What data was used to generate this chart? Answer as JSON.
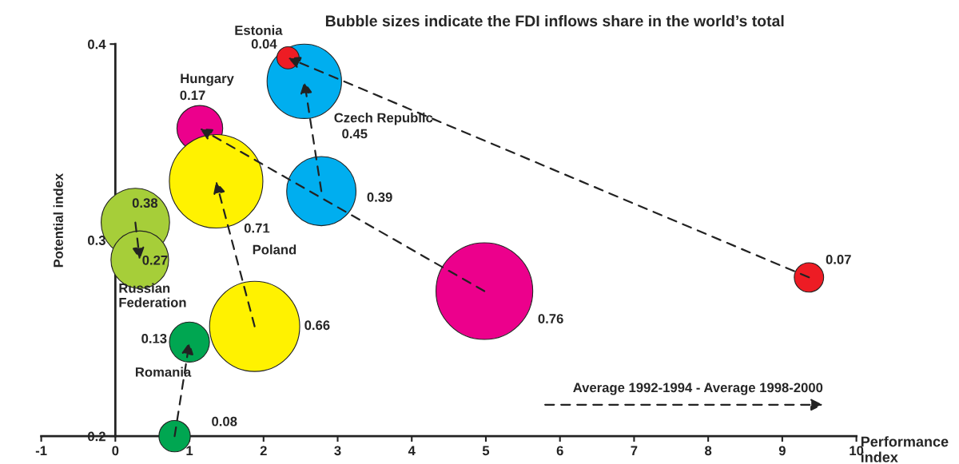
{
  "chart_data": {
    "type": "bubble",
    "title": "Bubble sizes indicate the FDI inflows share in the world’s total",
    "xlabel": "Performance\nindex",
    "ylabel": "Potential index",
    "xlim": [
      -1,
      10
    ],
    "xticks": [
      -1,
      0,
      1,
      2,
      3,
      4,
      5,
      6,
      7,
      8,
      9,
      10
    ],
    "ylim": [
      0.2,
      0.4
    ],
    "yticks": [
      0.2,
      0.3,
      0.4
    ],
    "grid": false,
    "legend": false,
    "annotations": [
      "Average 1992-1994 - Average 1998-2000"
    ],
    "series": [
      {
        "name": "Romania",
        "color": "#00a651",
        "x": [
          0.8,
          1.0
        ],
        "values": [
          0.2,
          0.248
        ],
        "sizes": [
          0.08,
          0.13
        ],
        "value_labels": [
          "0.08",
          "0.13"
        ]
      },
      {
        "name": "Russian\nFederation",
        "color": "#a6ce39",
        "x": [
          0.27,
          0.33
        ],
        "values": [
          0.309,
          0.29
        ],
        "sizes": [
          0.38,
          0.27
        ],
        "value_labels": [
          "0.38",
          "0.27"
        ]
      },
      {
        "name": "Hungary",
        "color": "#ec008c",
        "x": [
          4.98,
          1.14
        ],
        "values": [
          0.274,
          0.357
        ],
        "sizes": [
          0.76,
          0.17
        ],
        "value_labels": [
          "0.76",
          "0.17"
        ]
      },
      {
        "name": "Poland",
        "color": "#fff200",
        "x": [
          1.88,
          1.36
        ],
        "values": [
          0.256,
          0.33
        ],
        "sizes": [
          0.66,
          0.71
        ],
        "value_labels": [
          "0.66",
          "0.71"
        ]
      },
      {
        "name": "Czech Republic",
        "color": "#00aeef",
        "x": [
          2.78,
          2.55
        ],
        "values": [
          0.325,
          0.381
        ],
        "sizes": [
          0.39,
          0.45
        ],
        "value_labels": [
          "0.39",
          "0.45"
        ]
      },
      {
        "name": "Estonia",
        "color": "#ed1c24",
        "x": [
          9.36,
          2.33
        ],
        "values": [
          0.281,
          0.393
        ],
        "sizes": [
          0.07,
          0.04
        ],
        "value_labels": [
          "0.07",
          "0.04"
        ]
      }
    ]
  }
}
